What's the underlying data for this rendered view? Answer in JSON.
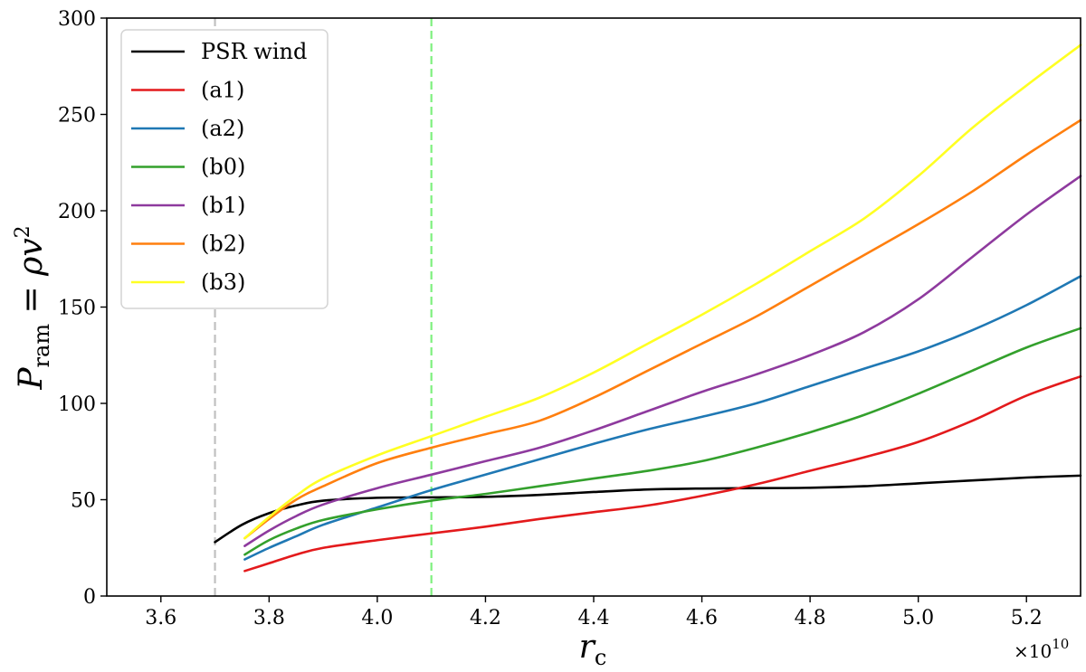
{
  "chart_data": {
    "type": "line",
    "xlabel": "r_c",
    "ylabel": "P_ram = ρv²",
    "x_scale_label": "×10",
    "x_scale_exponent": "10",
    "xlim": [
      3.5,
      5.3
    ],
    "ylim": [
      0,
      300
    ],
    "xticks": [
      3.6,
      3.8,
      4.0,
      4.2,
      4.4,
      4.6,
      4.8,
      5.0,
      5.2
    ],
    "xtick_labels": [
      "3.6",
      "3.8",
      "4.0",
      "4.2",
      "4.4",
      "4.6",
      "4.8",
      "5.0",
      "5.2"
    ],
    "yticks": [
      0,
      50,
      100,
      150,
      200,
      250,
      300
    ],
    "ytick_labels": [
      "0",
      "50",
      "100",
      "150",
      "200",
      "250",
      "300"
    ],
    "legend_position": "top-left",
    "vlines": [
      {
        "name": "gray-dashed-line",
        "x": 3.7,
        "color": "#c0c0c0"
      },
      {
        "name": "green-dashed-line",
        "x": 4.1,
        "color": "#7ff07f"
      }
    ],
    "series": [
      {
        "name": "PSR wind",
        "color": "#000000",
        "x": [
          3.7,
          3.75,
          3.8,
          3.85,
          3.9,
          4.0,
          4.1,
          4.2,
          4.3,
          4.4,
          4.5,
          4.6,
          4.7,
          4.8,
          4.9,
          5.0,
          5.1,
          5.2,
          5.3
        ],
        "y": [
          28,
          37,
          43,
          47,
          49.5,
          51,
          51.2,
          51.5,
          52.5,
          54,
          55.3,
          55.8,
          56,
          56.2,
          57,
          58.5,
          60,
          61.5,
          62.5
        ]
      },
      {
        "name": "(a1)",
        "color": "#e31a1c",
        "x": [
          3.755,
          3.8,
          3.85,
          3.9,
          4.0,
          4.1,
          4.2,
          4.3,
          4.4,
          4.5,
          4.6,
          4.7,
          4.8,
          4.9,
          5.0,
          5.1,
          5.2,
          5.3
        ],
        "y": [
          13,
          17,
          21.5,
          25,
          29,
          32.5,
          36,
          40,
          43.5,
          47,
          52,
          58,
          65,
          72,
          80,
          91,
          104,
          114
        ]
      },
      {
        "name": "(a2)",
        "color": "#1f78b4",
        "x": [
          3.755,
          3.8,
          3.85,
          3.9,
          4.0,
          4.1,
          4.2,
          4.3,
          4.4,
          4.5,
          4.6,
          4.7,
          4.8,
          4.9,
          5.0,
          5.1,
          5.2,
          5.3
        ],
        "y": [
          19,
          25,
          31,
          37,
          46,
          55,
          63,
          71,
          79,
          86.5,
          93,
          100,
          109,
          118,
          127,
          138,
          151,
          166
        ]
      },
      {
        "name": "(b0)",
        "color": "#33a02c",
        "x": [
          3.755,
          3.8,
          3.85,
          3.9,
          4.0,
          4.1,
          4.2,
          4.3,
          4.4,
          4.5,
          4.6,
          4.7,
          4.8,
          4.9,
          5.0,
          5.1,
          5.2,
          5.3
        ],
        "y": [
          21.5,
          29,
          35,
          39.5,
          45,
          49.5,
          53,
          57,
          61,
          65,
          70,
          77,
          85,
          94,
          105,
          117,
          129,
          139
        ]
      },
      {
        "name": "(b1)",
        "color": "#8e3a9e",
        "x": [
          3.755,
          3.8,
          3.85,
          3.9,
          4.0,
          4.1,
          4.2,
          4.3,
          4.4,
          4.5,
          4.6,
          4.7,
          4.8,
          4.9,
          5.0,
          5.1,
          5.2,
          5.3
        ],
        "y": [
          26,
          34,
          41.5,
          47.5,
          56,
          63,
          70,
          77,
          86,
          96,
          106,
          115,
          125,
          137,
          154,
          176,
          198,
          218
        ]
      },
      {
        "name": "(b2)",
        "color": "#ff7f0e",
        "x": [
          3.755,
          3.8,
          3.85,
          3.9,
          4.0,
          4.1,
          4.2,
          4.3,
          4.4,
          4.5,
          4.6,
          4.7,
          4.8,
          4.9,
          5.0,
          5.1,
          5.2,
          5.3
        ],
        "y": [
          30,
          40,
          50,
          57,
          69,
          77,
          84,
          91,
          103,
          117,
          131,
          145,
          161,
          177,
          193,
          210,
          229,
          247
        ]
      },
      {
        "name": "(b3)",
        "color": "#ffff22",
        "x": [
          3.755,
          3.8,
          3.85,
          3.9,
          4.0,
          4.1,
          4.2,
          4.3,
          4.4,
          4.5,
          4.6,
          4.7,
          4.8,
          4.9,
          5.0,
          5.1,
          5.2,
          5.3
        ],
        "y": [
          30,
          41,
          52,
          61,
          73,
          83,
          93,
          103,
          116,
          131,
          146,
          162,
          179,
          196,
          218,
          243,
          265,
          286
        ]
      }
    ]
  }
}
